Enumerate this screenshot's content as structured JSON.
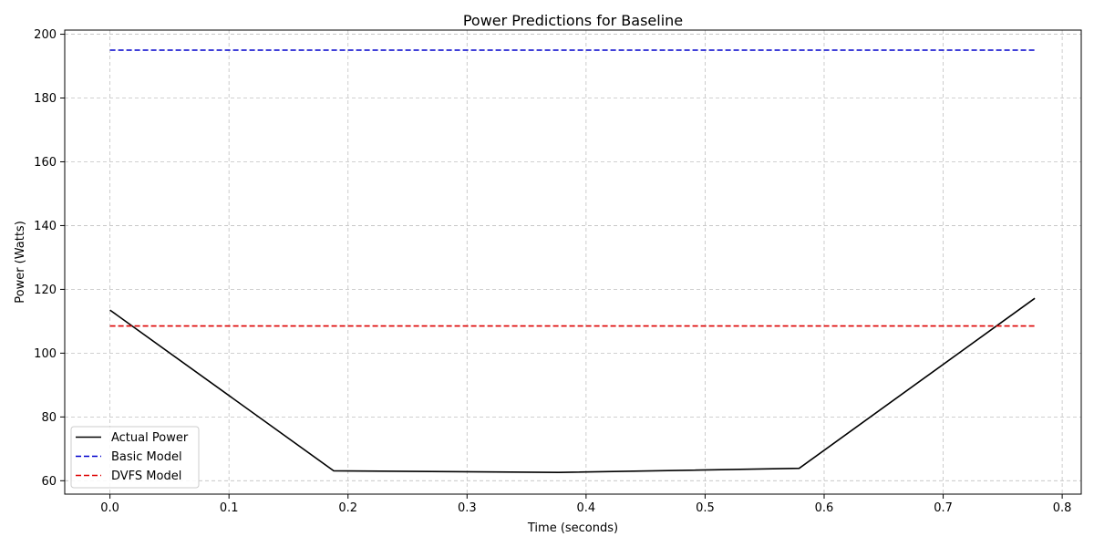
{
  "chart_data": {
    "type": "line",
    "title": "Power Predictions for Baseline",
    "xlabel": "Time (seconds)",
    "ylabel": "Power (Watts)",
    "xlim": [
      -0.038,
      0.816
    ],
    "ylim": [
      55.8,
      201.3
    ],
    "x_ticks": [
      0.0,
      0.1,
      0.2,
      0.3,
      0.4,
      0.5,
      0.6,
      0.7,
      0.8
    ],
    "y_ticks": [
      60,
      80,
      100,
      120,
      140,
      160,
      180,
      200
    ],
    "x_tick_labels": [
      "0.0",
      "0.1",
      "0.2",
      "0.3",
      "0.4",
      "0.5",
      "0.6",
      "0.7",
      "0.8"
    ],
    "y_tick_labels": [
      "60",
      "80",
      "100",
      "120",
      "140",
      "160",
      "180",
      "200"
    ],
    "grid": true,
    "legend_position": "lower-left",
    "series": [
      {
        "name": "Actual Power",
        "color": "#000000",
        "style": "solid",
        "x": [
          0.0,
          0.188,
          0.377,
          0.579,
          0.777
        ],
        "y": [
          113.5,
          63.1,
          62.6,
          63.9,
          117.2
        ]
      },
      {
        "name": "Basic Model",
        "color": "#0000cc",
        "style": "dashed",
        "x": [
          0.0,
          0.777
        ],
        "y": [
          195.0,
          195.0
        ]
      },
      {
        "name": "DVFS Model",
        "color": "#dd0000",
        "style": "dashed",
        "x": [
          0.0,
          0.777
        ],
        "y": [
          108.5,
          108.5
        ]
      }
    ]
  }
}
